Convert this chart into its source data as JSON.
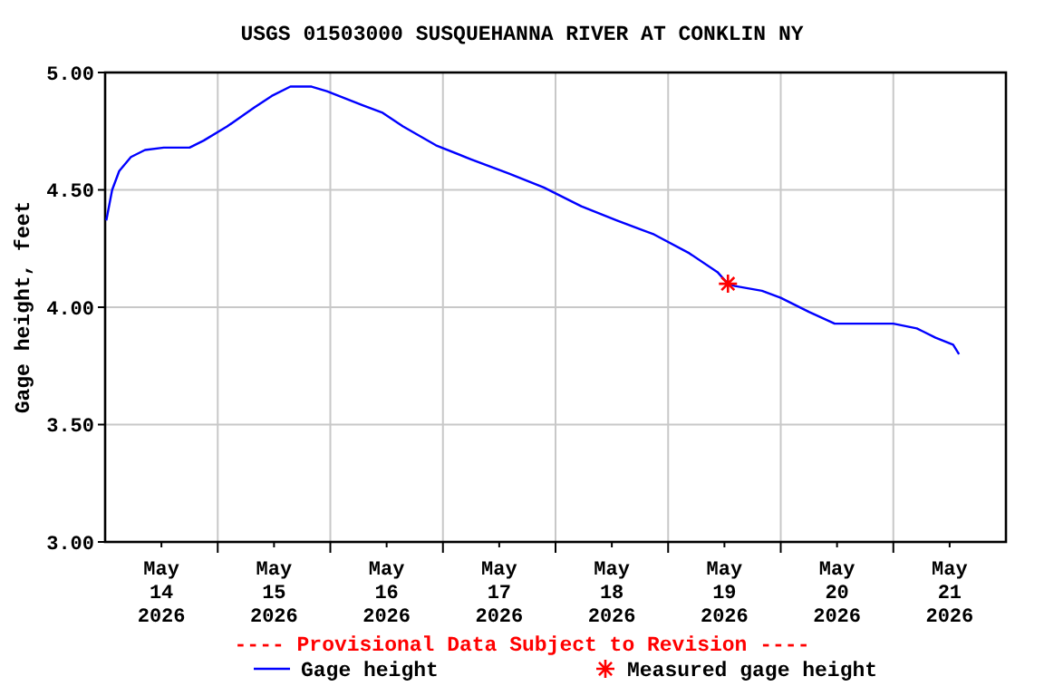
{
  "chart_data": {
    "type": "line",
    "title": "USGS 01503000 SUSQUEHANNA RIVER AT CONKLIN NY",
    "ylabel": "Gage height, feet",
    "xlim": [
      "2026-05-14T00:00",
      "2026-05-22T00:00"
    ],
    "xticks": [
      {
        "value": "2026-05-14T12:00",
        "label": "May\n14\n2026"
      },
      {
        "value": "2026-05-15T00:00",
        "label": null
      },
      {
        "value": "2026-05-15T12:00",
        "label": "May\n15\n2026"
      },
      {
        "value": "2026-05-16T00:00",
        "label": null
      },
      {
        "value": "2026-05-16T12:00",
        "label": "May\n16\n2026"
      },
      {
        "value": "2026-05-17T00:00",
        "label": null
      },
      {
        "value": "2026-05-17T12:00",
        "label": "May\n17\n2026"
      },
      {
        "value": "2026-05-18T00:00",
        "label": null
      },
      {
        "value": "2026-05-18T12:00",
        "label": "May\n18\n2026"
      },
      {
        "value": "2026-05-19T00:00",
        "label": null
      },
      {
        "value": "2026-05-19T12:00",
        "label": "May\n19\n2026"
      },
      {
        "value": "2026-05-20T00:00",
        "label": null
      },
      {
        "value": "2026-05-20T12:00",
        "label": "May\n20\n2026"
      },
      {
        "value": "2026-05-21T00:00",
        "label": null
      },
      {
        "value": "2026-05-21T12:00",
        "label": "May\n21\n2026"
      }
    ],
    "ylim": [
      3,
      5
    ],
    "yticks": [
      {
        "value": 3,
        "label": "3.00"
      },
      {
        "value": 3.5,
        "label": "3.50"
      },
      {
        "value": 4,
        "label": "4.00"
      },
      {
        "value": 4.5,
        "label": "4.50"
      },
      {
        "value": 5,
        "label": "5.00"
      }
    ],
    "grid": true,
    "legend": "bottom",
    "line_style": "solid",
    "annotations": [
      "---- Provisional Data Subject to Revision ----"
    ],
    "series": [
      {
        "name": "Gage height",
        "color": "#0000ff",
        "marker": "none",
        "x": [
          "2026-05-14T00:15",
          "2026-05-14T01:30",
          "2026-05-14T03:00",
          "2026-05-14T05:30",
          "2026-05-14T08:30",
          "2026-05-14T12:30",
          "2026-05-14T18:00",
          "2026-05-14T21:00",
          "2026-05-15T02:00",
          "2026-05-15T07:45",
          "2026-05-15T11:30",
          "2026-05-15T15:30",
          "2026-05-15T20:00",
          "2026-05-15T23:15",
          "2026-05-16T07:00",
          "2026-05-16T11:00",
          "2026-05-16T15:30",
          "2026-05-16T22:30",
          "2026-05-17T06:00",
          "2026-05-17T14:00",
          "2026-05-17T21:30",
          "2026-05-18T05:30",
          "2026-05-18T13:00",
          "2026-05-18T21:00",
          "2026-05-19T04:30",
          "2026-05-19T10:30",
          "2026-05-19T12:45",
          "2026-05-19T14:15",
          "2026-05-19T20:00",
          "2026-05-20T00:00",
          "2026-05-20T06:00",
          "2026-05-20T11:30",
          "2026-05-20T15:30",
          "2026-05-21T00:00",
          "2026-05-21T05:00",
          "2026-05-21T09:00",
          "2026-05-21T12:45",
          "2026-05-21T14:00"
        ],
        "values": [
          4.37,
          4.5,
          4.58,
          4.64,
          4.67,
          4.68,
          4.68,
          4.71,
          4.77,
          4.85,
          4.9,
          4.94,
          4.94,
          4.92,
          4.86,
          4.83,
          4.77,
          4.69,
          4.63,
          4.57,
          4.51,
          4.43,
          4.37,
          4.31,
          4.23,
          4.15,
          4.1,
          4.09,
          4.07,
          4.04,
          3.98,
          3.93,
          3.93,
          3.93,
          3.91,
          3.87,
          3.84,
          3.8
        ]
      },
      {
        "name": "Measured gage height",
        "type": "scatter",
        "color": "#ff0000",
        "marker": "cross",
        "x": [
          "2026-05-19T12:45"
        ],
        "values": [
          4.1
        ]
      }
    ]
  }
}
